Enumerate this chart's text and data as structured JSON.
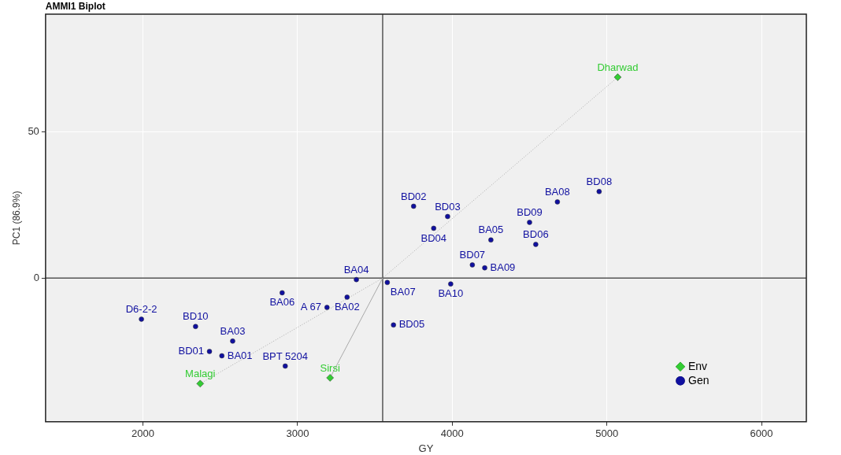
{
  "chart_data": {
    "type": "scatter",
    "title": "AMMI1 Biplot",
    "xlabel": "GY",
    "ylabel": "PC1 (86.9%)",
    "xlim": [
      1370,
      6290
    ],
    "ylim": [
      -49,
      90
    ],
    "xticks": [
      2000,
      3000,
      4000,
      5000,
      6000
    ],
    "yticks": [
      0,
      50
    ],
    "grid": true,
    "legend": "bottom right",
    "series": [
      {
        "name": "Env",
        "color": "#33cc33",
        "marker": "diamond",
        "x": [
          5070,
          2370,
          3210
        ],
        "values": [
          68.5,
          -36,
          -34
        ],
        "value_labels": [
          "Dharwad",
          "Malagi",
          "Sirsi"
        ]
      },
      {
        "name": "Gen",
        "color": "#1010a0",
        "marker": "circle",
        "x": [
          4950,
          4680,
          3750,
          3970,
          3880,
          4500,
          4250,
          4540,
          4130,
          4210,
          3380,
          3580,
          3990,
          3620,
          3320,
          3190,
          2900,
          1990,
          2340,
          2580,
          2430,
          2510,
          2920
        ],
        "values": [
          29.5,
          26,
          24.5,
          21,
          17,
          19,
          13,
          11.5,
          4.5,
          3.5,
          -0.5,
          -1.5,
          -2,
          -16,
          -6.5,
          -10,
          -5,
          -14,
          -16.5,
          -21.5,
          -25,
          -26.5,
          -30
        ],
        "value_labels": [
          "BD08",
          "BA08",
          "BD02",
          "BD03",
          "BD04",
          "BD09",
          "BA05",
          "BD06",
          "BD07",
          "BA09",
          "BA04",
          "BA07",
          "BA10",
          "BD05",
          "BA02",
          "A 67",
          "BA06",
          "D6-2-2",
          "BD10",
          "BA03",
          "BD01",
          "BA01",
          "BPT 5204"
        ]
      },
      {
        "type": "line",
        "color": "#aaaaaa",
        "line_style": "dotted",
        "marker": "none",
        "x": [
          5070,
          3550,
          2370
        ],
        "values": [
          68.5,
          0,
          -36
        ]
      },
      {
        "type": "line",
        "color": "#aaaaaa",
        "line_style": "solid",
        "marker": "none",
        "x": [
          3550,
          3210
        ],
        "values": [
          0,
          -34
        ]
      }
    ],
    "ref_lines": [
      {
        "axis": "x",
        "value": 3550,
        "color": "#555555"
      },
      {
        "axis": "y",
        "value": 0,
        "color": "#555555"
      }
    ]
  }
}
